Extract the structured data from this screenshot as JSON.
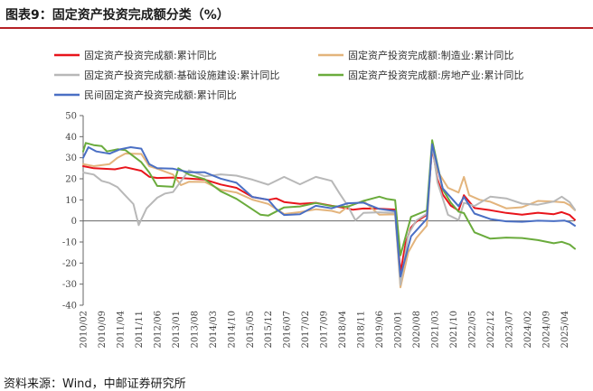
{
  "title": "图表9：固定资产投资完成额分类（%）",
  "source": "资料来源：Wind，中邮证券研究所",
  "chart_data": {
    "type": "line",
    "title": "图表9：固定资产投资完成额分类（%）",
    "xlabel": "",
    "ylabel": "",
    "ylim": [
      -40,
      50
    ],
    "yticks": [
      -40,
      -30,
      -20,
      -10,
      0,
      10,
      20,
      30,
      40,
      50
    ],
    "x_start": "2010/02",
    "x_end": "2025/08",
    "tick_labels": [
      "2010/02",
      "2010/09",
      "2011/04",
      "2011/11",
      "2012/06",
      "2013/01",
      "2013/08",
      "2014/03",
      "2014/10",
      "2015/05",
      "2015/12",
      "2016/07",
      "2017/02",
      "2017/09",
      "2018/04",
      "2018/11",
      "2019/06",
      "2020/01",
      "2020/08",
      "2021/03",
      "2021/10",
      "2022/05",
      "2022/12",
      "2023/07",
      "2024/02",
      "2024/09",
      "2025/04"
    ],
    "grid": false,
    "legend_position": "top",
    "series": [
      {
        "name": "固定资产投资完成额:累计同比",
        "color": "#e8141b",
        "points": [
          [
            "2010/02",
            26
          ],
          [
            "2010/06",
            25
          ],
          [
            "2011/02",
            24.5
          ],
          [
            "2011/06",
            25.5
          ],
          [
            "2011/12",
            23.8
          ],
          [
            "2012/03",
            21
          ],
          [
            "2012/06",
            20.4
          ],
          [
            "2012/12",
            20.6
          ],
          [
            "2013/06",
            20.1
          ],
          [
            "2013/12",
            19.6
          ],
          [
            "2014/06",
            17.3
          ],
          [
            "2014/12",
            15.7
          ],
          [
            "2015/06",
            11.4
          ],
          [
            "2015/12",
            10
          ],
          [
            "2016/03",
            10.7
          ],
          [
            "2016/06",
            9
          ],
          [
            "2016/12",
            8.1
          ],
          [
            "2017/06",
            8.6
          ],
          [
            "2017/12",
            7.2
          ],
          [
            "2018/06",
            6
          ],
          [
            "2018/08",
            5.3
          ],
          [
            "2018/12",
            5.9
          ],
          [
            "2019/06",
            5.8
          ],
          [
            "2019/12",
            5.4
          ],
          [
            "2020/02",
            -24.5
          ],
          [
            "2020/04",
            -10.3
          ],
          [
            "2020/06",
            -3.1
          ],
          [
            "2020/08",
            -0.3
          ],
          [
            "2020/12",
            2.9
          ],
          [
            "2021/02",
            35
          ],
          [
            "2021/04",
            19.9
          ],
          [
            "2021/06",
            12.6
          ],
          [
            "2021/09",
            7.3
          ],
          [
            "2021/12",
            4.9
          ],
          [
            "2022/02",
            12.2
          ],
          [
            "2022/06",
            6.1
          ],
          [
            "2022/12",
            5.1
          ],
          [
            "2023/06",
            3.8
          ],
          [
            "2023/12",
            3
          ],
          [
            "2024/06",
            3.9
          ],
          [
            "2024/12",
            3.2
          ],
          [
            "2025/03",
            4.2
          ],
          [
            "2025/06",
            2.8
          ],
          [
            "2025/08",
            0.5
          ]
        ]
      },
      {
        "name": "固定资产投资完成额:制造业:累计同比",
        "color": "#e3b47c",
        "points": [
          [
            "2010/02",
            27
          ],
          [
            "2010/06",
            26
          ],
          [
            "2010/12",
            27
          ],
          [
            "2011/03",
            30
          ],
          [
            "2011/06",
            32
          ],
          [
            "2011/12",
            31.8
          ],
          [
            "2012/03",
            26
          ],
          [
            "2012/06",
            24.8
          ],
          [
            "2012/12",
            22
          ],
          [
            "2013/03",
            17
          ],
          [
            "2013/06",
            18.6
          ],
          [
            "2013/12",
            18.5
          ],
          [
            "2014/06",
            14.8
          ],
          [
            "2014/12",
            13.5
          ],
          [
            "2015/06",
            10.1
          ],
          [
            "2015/12",
            8.1
          ],
          [
            "2016/06",
            3.3
          ],
          [
            "2016/12",
            4.2
          ],
          [
            "2017/06",
            5.5
          ],
          [
            "2017/12",
            4.8
          ],
          [
            "2018/03",
            3.8
          ],
          [
            "2018/06",
            6.8
          ],
          [
            "2018/12",
            9.5
          ],
          [
            "2019/06",
            3
          ],
          [
            "2019/12",
            3.1
          ],
          [
            "2020/02",
            -31.5
          ],
          [
            "2020/05",
            -14.8
          ],
          [
            "2020/08",
            -8.1
          ],
          [
            "2020/12",
            -2.2
          ],
          [
            "2021/02",
            37.3
          ],
          [
            "2021/04",
            23.8
          ],
          [
            "2021/08",
            15.7
          ],
          [
            "2021/12",
            13.5
          ],
          [
            "2022/02",
            20.9
          ],
          [
            "2022/04",
            12.2
          ],
          [
            "2022/08",
            10
          ],
          [
            "2022/12",
            9.1
          ],
          [
            "2023/06",
            6
          ],
          [
            "2023/12",
            6.5
          ],
          [
            "2024/06",
            9.5
          ],
          [
            "2024/12",
            9.2
          ],
          [
            "2025/04",
            8.8
          ],
          [
            "2025/06",
            7.5
          ],
          [
            "2025/08",
            5.1
          ]
        ]
      },
      {
        "name": "固定资产投资完成额:基础设施建设:累计同比",
        "color": "#b8b8b8",
        "points": [
          [
            "2010/02",
            23
          ],
          [
            "2010/06",
            22
          ],
          [
            "2010/09",
            19
          ],
          [
            "2010/12",
            18
          ],
          [
            "2011/03",
            16
          ],
          [
            "2011/06",
            12
          ],
          [
            "2011/09",
            8
          ],
          [
            "2011/11",
            -2
          ],
          [
            "2012/02",
            6
          ],
          [
            "2012/06",
            11
          ],
          [
            "2012/09",
            13
          ],
          [
            "2012/12",
            13.7
          ],
          [
            "2013/06",
            24
          ],
          [
            "2013/12",
            21.2
          ],
          [
            "2014/06",
            22.1
          ],
          [
            "2014/12",
            21.5
          ],
          [
            "2015/06",
            19.6
          ],
          [
            "2015/12",
            17.2
          ],
          [
            "2016/06",
            20.9
          ],
          [
            "2016/12",
            17.4
          ],
          [
            "2017/06",
            20.9
          ],
          [
            "2017/12",
            19
          ],
          [
            "2018/03",
            13
          ],
          [
            "2018/06",
            7.3
          ],
          [
            "2018/09",
            0.3
          ],
          [
            "2018/12",
            3.8
          ],
          [
            "2019/06",
            4.1
          ],
          [
            "2019/12",
            3.8
          ],
          [
            "2020/02",
            -30.3
          ],
          [
            "2020/05",
            -6.3
          ],
          [
            "2020/08",
            0.2
          ],
          [
            "2020/12",
            3.4
          ],
          [
            "2021/02",
            36.6
          ],
          [
            "2021/04",
            18.4
          ],
          [
            "2021/08",
            2.9
          ],
          [
            "2021/12",
            0.4
          ],
          [
            "2022/02",
            8.6
          ],
          [
            "2022/06",
            7.1
          ],
          [
            "2022/12",
            11.5
          ],
          [
            "2023/06",
            10.7
          ],
          [
            "2023/12",
            8.2
          ],
          [
            "2024/06",
            7.7
          ],
          [
            "2024/12",
            9.2
          ],
          [
            "2025/03",
            11.5
          ],
          [
            "2025/06",
            8.9
          ],
          [
            "2025/08",
            5.4
          ]
        ]
      },
      {
        "name": "固定资产投资完成额:房地产业:累计同比",
        "color": "#6aab3c",
        "points": [
          [
            "2010/02",
            33
          ],
          [
            "2010/03",
            37
          ],
          [
            "2010/06",
            36
          ],
          [
            "2010/09",
            35.5
          ],
          [
            "2010/11",
            33
          ],
          [
            "2011/03",
            34
          ],
          [
            "2011/06",
            33.6
          ],
          [
            "2011/12",
            27.9
          ],
          [
            "2012/03",
            23
          ],
          [
            "2012/06",
            16.6
          ],
          [
            "2012/12",
            16.2
          ],
          [
            "2013/02",
            25
          ],
          [
            "2013/06",
            22
          ],
          [
            "2013/12",
            19.8
          ],
          [
            "2014/06",
            14.1
          ],
          [
            "2014/12",
            10.5
          ],
          [
            "2015/06",
            5.5
          ],
          [
            "2015/09",
            3
          ],
          [
            "2015/12",
            2.5
          ],
          [
            "2016/06",
            6.4
          ],
          [
            "2016/12",
            6.9
          ],
          [
            "2017/06",
            8.5
          ],
          [
            "2017/12",
            7
          ],
          [
            "2018/06",
            6.7
          ],
          [
            "2018/12",
            9.5
          ],
          [
            "2019/06",
            11.5
          ],
          [
            "2019/09",
            10.4
          ],
          [
            "2019/12",
            9.9
          ],
          [
            "2020/02",
            -16.3
          ],
          [
            "2020/06",
            1.9
          ],
          [
            "2020/12",
            5
          ],
          [
            "2021/02",
            38.3
          ],
          [
            "2021/06",
            15
          ],
          [
            "2021/09",
            8.8
          ],
          [
            "2021/12",
            4.4
          ],
          [
            "2022/02",
            3.7
          ],
          [
            "2022/06",
            -5.4
          ],
          [
            "2022/12",
            -8.4
          ],
          [
            "2023/06",
            -7.9
          ],
          [
            "2023/12",
            -8.1
          ],
          [
            "2024/06",
            -9.1
          ],
          [
            "2024/12",
            -10.6
          ],
          [
            "2025/03",
            -9.9
          ],
          [
            "2025/06",
            -11.2
          ],
          [
            "2025/08",
            -13.2
          ]
        ]
      },
      {
        "name": "民间固定资产投资完成额:累计同比",
        "color": "#4a6fc4",
        "points": [
          [
            "2010/02",
            30
          ],
          [
            "2010/04",
            35
          ],
          [
            "2010/07",
            33
          ],
          [
            "2010/12",
            31.9
          ],
          [
            "2011/04",
            34
          ],
          [
            "2011/08",
            35
          ],
          [
            "2011/12",
            34.3
          ],
          [
            "2012/03",
            27
          ],
          [
            "2012/06",
            25
          ],
          [
            "2012/12",
            24.8
          ],
          [
            "2013/06",
            23.1
          ],
          [
            "2013/12",
            23.1
          ],
          [
            "2014/06",
            20.1
          ],
          [
            "2014/12",
            18.1
          ],
          [
            "2015/06",
            11.4
          ],
          [
            "2015/12",
            10.1
          ],
          [
            "2016/03",
            5.7
          ],
          [
            "2016/06",
            2.8
          ],
          [
            "2016/12",
            3.2
          ],
          [
            "2017/06",
            7.2
          ],
          [
            "2017/12",
            6
          ],
          [
            "2018/06",
            8.4
          ],
          [
            "2018/12",
            8.7
          ],
          [
            "2019/06",
            5.7
          ],
          [
            "2019/12",
            4.7
          ],
          [
            "2020/02",
            -26.4
          ],
          [
            "2020/06",
            -7.3
          ],
          [
            "2020/12",
            1
          ],
          [
            "2021/02",
            36.4
          ],
          [
            "2021/06",
            15.4
          ],
          [
            "2021/12",
            7
          ],
          [
            "2022/02",
            11.4
          ],
          [
            "2022/06",
            3.5
          ],
          [
            "2022/12",
            0.9
          ],
          [
            "2023/06",
            -0.2
          ],
          [
            "2023/12",
            -0.4
          ],
          [
            "2024/06",
            0.1
          ],
          [
            "2024/12",
            -0.1
          ],
          [
            "2025/04",
            0.2
          ],
          [
            "2025/06",
            -0.6
          ],
          [
            "2025/08",
            -2.3
          ]
        ]
      }
    ]
  }
}
